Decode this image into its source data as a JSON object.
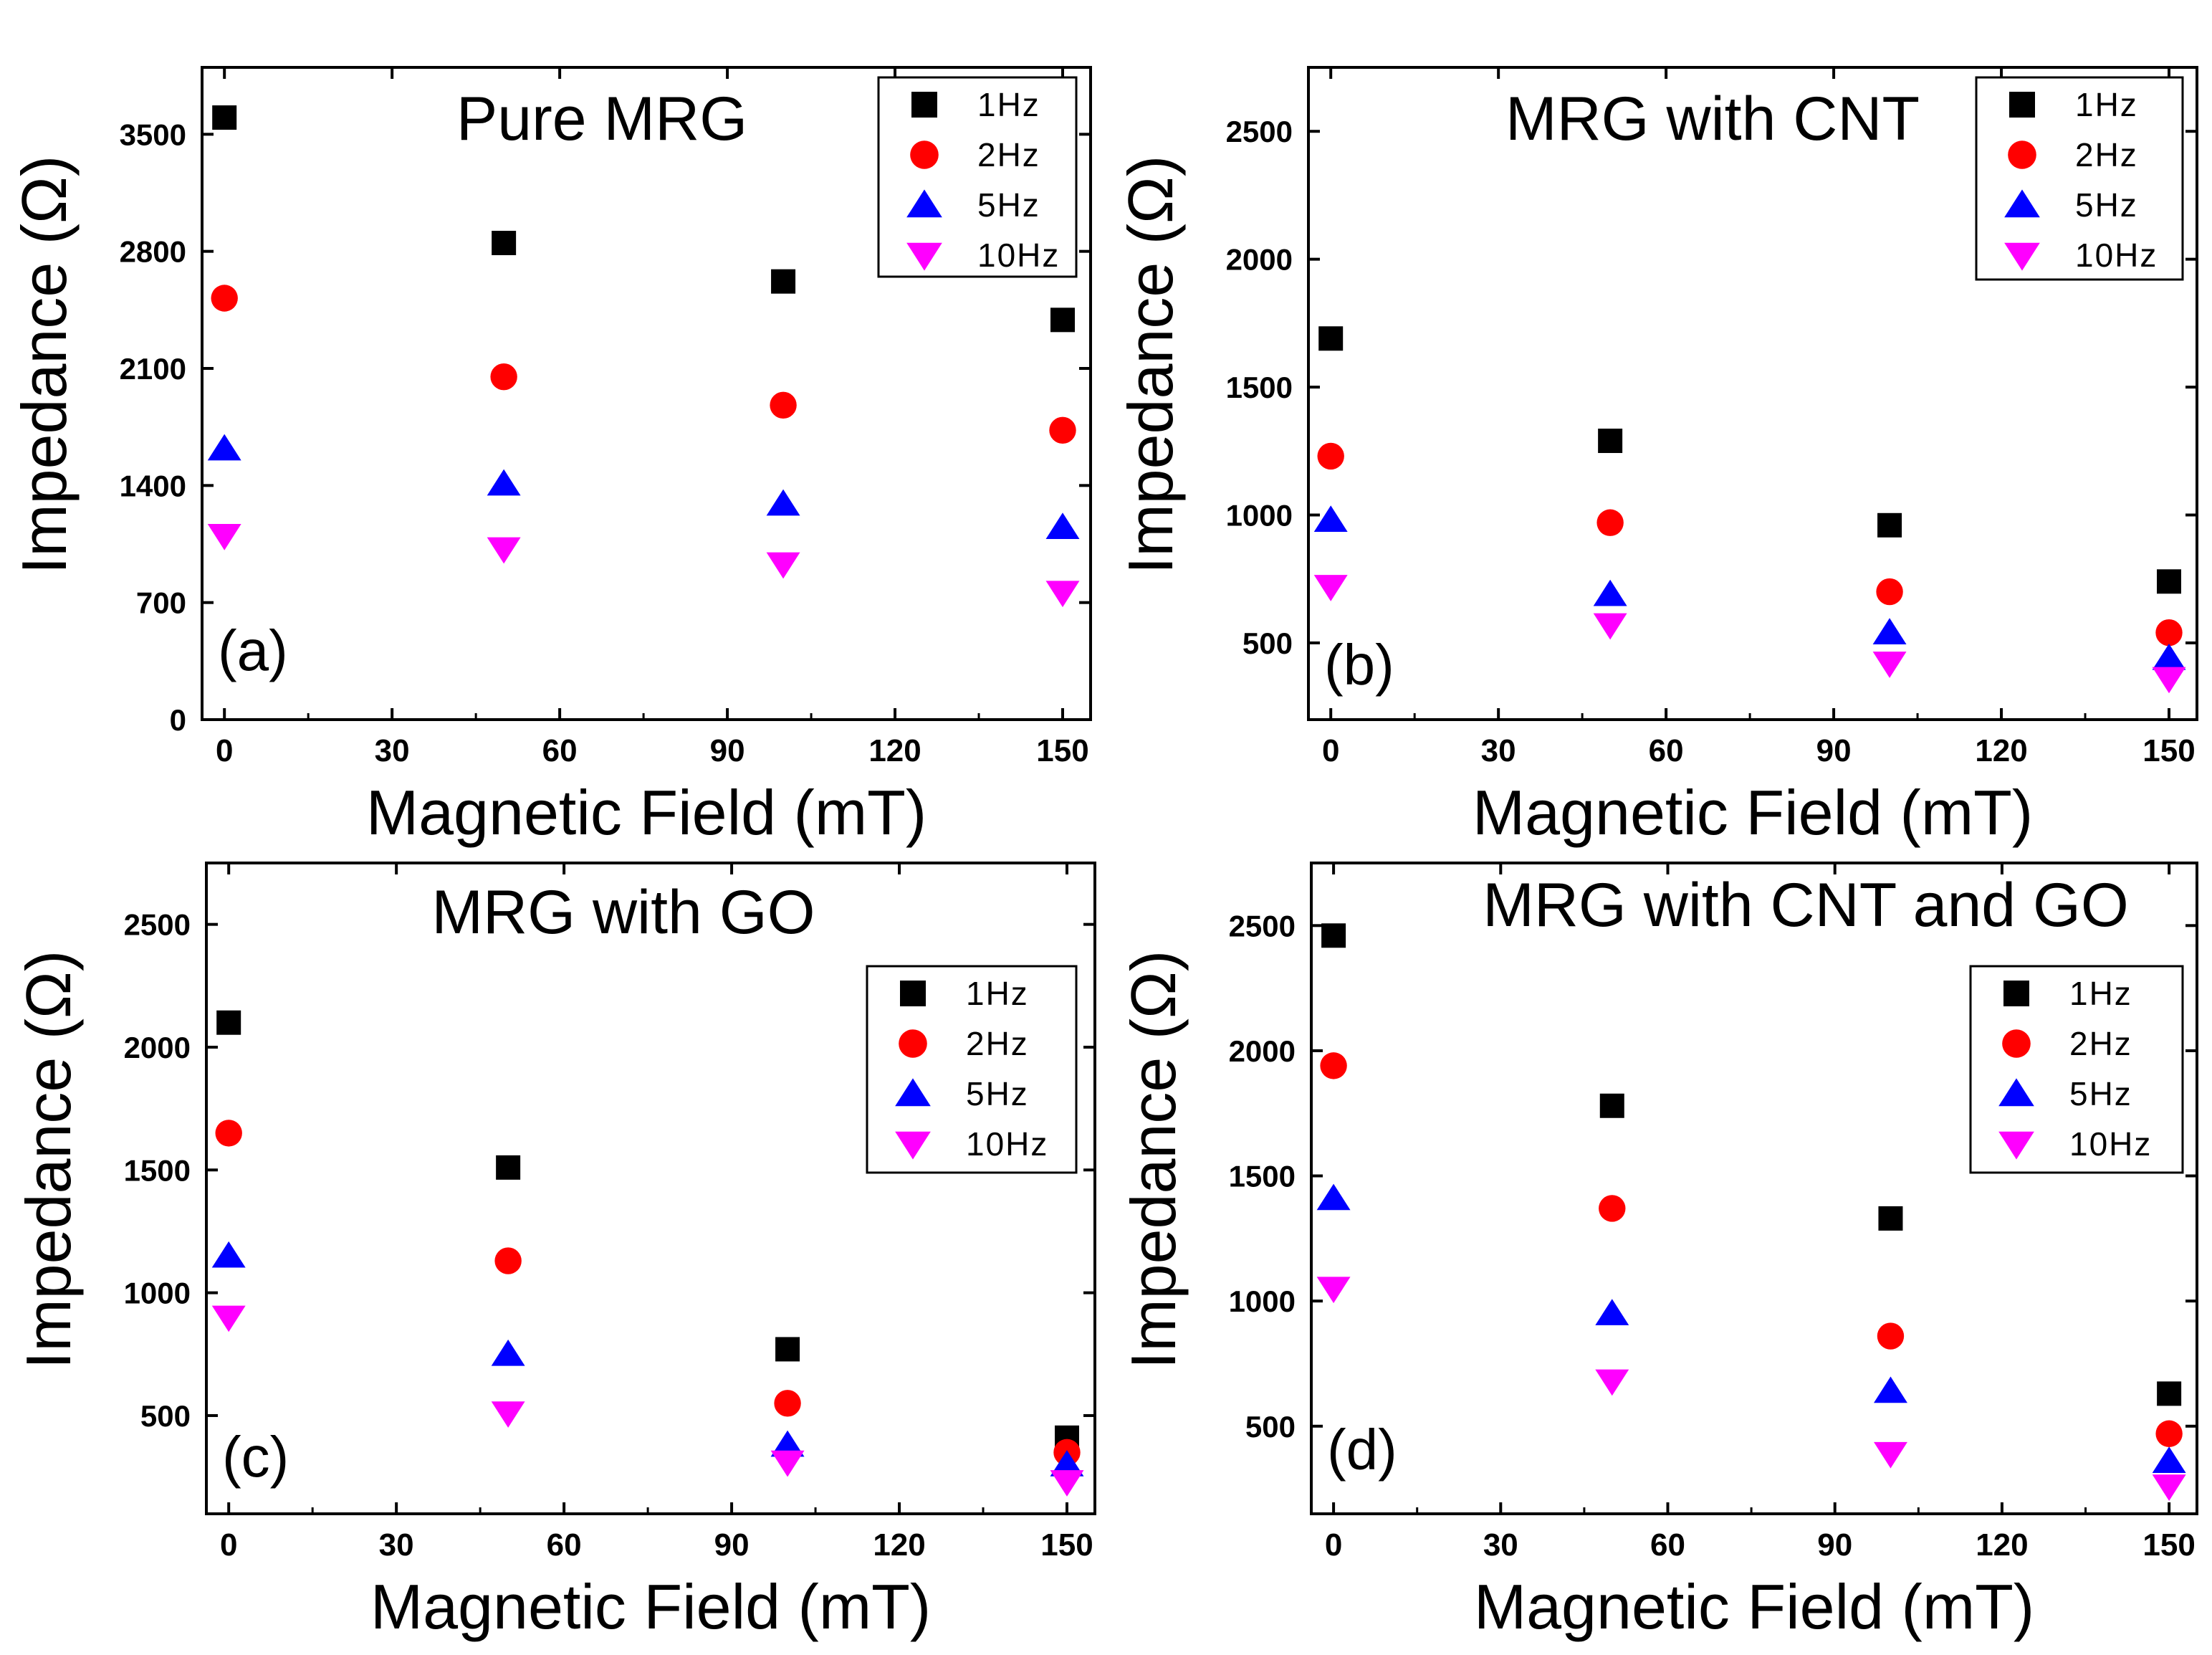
{
  "figure": {
    "xlabel": "Magnetic Field (mT)",
    "ylabel": "Impedance (Ω)",
    "legend_labels": [
      "1Hz",
      "2Hz",
      "5Hz",
      "10Hz"
    ],
    "series_colors": [
      "#000000",
      "#ff0000",
      "#0000ff",
      "#ff00ff"
    ],
    "series_markers": [
      "square",
      "circle",
      "triangle-up",
      "triangle-down"
    ]
  },
  "chart_data": [
    {
      "type": "scatter",
      "panel_label": "(a)",
      "title": "Pure MRG",
      "xlabel": "Magnetic Field (mT)",
      "ylabel": "Impedance (Ω)",
      "xlim": [
        -4,
        155
      ],
      "ylim": [
        0,
        3900
      ],
      "xticks": [
        0,
        30,
        60,
        90,
        120,
        150
      ],
      "yticks": [
        0,
        700,
        1400,
        2100,
        2800,
        3500
      ],
      "legend_position": "top-right",
      "x": [
        0,
        50,
        100,
        150
      ],
      "series": [
        {
          "name": "1Hz",
          "values": [
            3600,
            2850,
            2620,
            2390
          ]
        },
        {
          "name": "2Hz",
          "values": [
            2520,
            2050,
            1880,
            1730
          ]
        },
        {
          "name": "5Hz",
          "values": [
            1620,
            1410,
            1290,
            1150
          ]
        },
        {
          "name": "10Hz",
          "values": [
            1100,
            1020,
            930,
            760
          ]
        }
      ]
    },
    {
      "type": "scatter",
      "panel_label": "(b)",
      "title": "MRG with CNT",
      "xlabel": "Magnetic Field (mT)",
      "ylabel": "Impedance (Ω)",
      "xlim": [
        -4,
        155
      ],
      "ylim": [
        200,
        2750
      ],
      "xticks": [
        0,
        30,
        60,
        90,
        120,
        150
      ],
      "yticks": [
        500,
        1000,
        1500,
        2000,
        2500
      ],
      "legend_position": "top-right",
      "x": [
        0,
        50,
        100,
        150
      ],
      "series": [
        {
          "name": "1Hz",
          "values": [
            1690,
            1290,
            960,
            740
          ]
        },
        {
          "name": "2Hz",
          "values": [
            1230,
            970,
            700,
            540
          ]
        },
        {
          "name": "5Hz",
          "values": [
            980,
            690,
            540,
            440
          ]
        },
        {
          "name": "10Hz",
          "values": [
            720,
            570,
            420,
            360
          ]
        }
      ]
    },
    {
      "type": "scatter",
      "panel_label": "(c)",
      "title": "MRG with GO",
      "xlabel": "Magnetic Field (mT)",
      "ylabel": "Impedance (Ω)",
      "xlim": [
        -4,
        155
      ],
      "ylim": [
        100,
        2750
      ],
      "xticks": [
        0,
        30,
        60,
        90,
        120,
        150
      ],
      "yticks": [
        500,
        1000,
        1500,
        2000,
        2500
      ],
      "legend_position": "right",
      "x": [
        0,
        50,
        100,
        150
      ],
      "series": [
        {
          "name": "1Hz",
          "values": [
            2100,
            1510,
            770,
            410
          ]
        },
        {
          "name": "2Hz",
          "values": [
            1650,
            1130,
            550,
            350
          ]
        },
        {
          "name": "5Hz",
          "values": [
            1150,
            750,
            380,
            300
          ]
        },
        {
          "name": "10Hz",
          "values": [
            900,
            510,
            310,
            230
          ]
        }
      ]
    },
    {
      "type": "scatter",
      "panel_label": "(d)",
      "title": "MRG with CNT and GO",
      "xlabel": "Magnetic Field (mT)",
      "ylabel": "Impedance (Ω)",
      "xlim": [
        -4,
        155
      ],
      "ylim": [
        150,
        2750
      ],
      "xticks": [
        0,
        30,
        60,
        90,
        120,
        150
      ],
      "yticks": [
        500,
        1000,
        1500,
        2000,
        2500
      ],
      "legend_position": "right",
      "x": [
        0,
        50,
        100,
        150
      ],
      "series": [
        {
          "name": "1Hz",
          "values": [
            2460,
            1780,
            1330,
            630
          ]
        },
        {
          "name": "2Hz",
          "values": [
            1940,
            1370,
            860,
            470
          ]
        },
        {
          "name": "5Hz",
          "values": [
            1410,
            950,
            640,
            360
          ]
        },
        {
          "name": "10Hz",
          "values": [
            1050,
            680,
            390,
            260
          ]
        }
      ]
    }
  ]
}
